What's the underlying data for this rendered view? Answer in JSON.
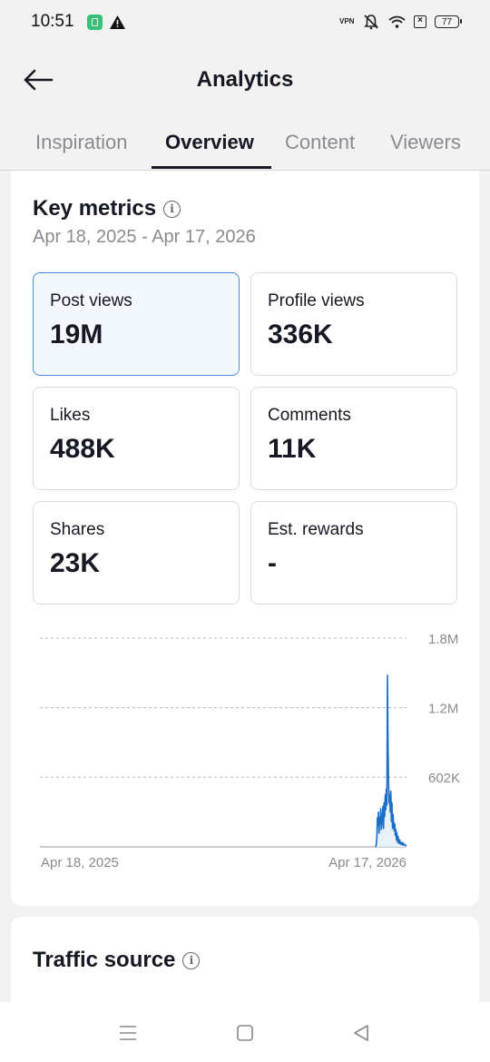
{
  "status_bar": {
    "time": "10:51",
    "vpn_label": "VPN",
    "battery": "77"
  },
  "header": {
    "title": "Analytics"
  },
  "tabs": [
    {
      "label": "Inspiration",
      "active": false
    },
    {
      "label": "Overview",
      "active": true
    },
    {
      "label": "Content",
      "active": false
    },
    {
      "label": "Viewers",
      "active": false
    }
  ],
  "key_metrics": {
    "title": "Key metrics",
    "date_range": "Apr 18, 2025 - Apr 17, 2026",
    "metrics": [
      {
        "label": "Post views",
        "value": "19M",
        "selected": true
      },
      {
        "label": "Profile views",
        "value": "336K",
        "selected": false
      },
      {
        "label": "Likes",
        "value": "488K",
        "selected": false
      },
      {
        "label": "Comments",
        "value": "11K",
        "selected": false
      },
      {
        "label": "Shares",
        "value": "23K",
        "selected": false
      },
      {
        "label": "Est. rewards",
        "value": "-",
        "selected": false
      }
    ]
  },
  "chart_data": {
    "type": "line",
    "series": [
      {
        "values": [
          0,
          0,
          0,
          0,
          0,
          0,
          0,
          0,
          0,
          0,
          0,
          0,
          0,
          0,
          0,
          0,
          0,
          0,
          0,
          0,
          0,
          0,
          0,
          0,
          0,
          0,
          0,
          0,
          0,
          0,
          0,
          0,
          0,
          0,
          0,
          0,
          0,
          0,
          0,
          0,
          0,
          0,
          0,
          0,
          0,
          0,
          0,
          0,
          0,
          0,
          0,
          0,
          0,
          0,
          0,
          0,
          0,
          0,
          0,
          0,
          0,
          0,
          0,
          0,
          0,
          0,
          0,
          0,
          0,
          0,
          0,
          0,
          0,
          0,
          0,
          0,
          0,
          0,
          0,
          0,
          0,
          0,
          0,
          0,
          0,
          0,
          0,
          0,
          0,
          0,
          0,
          0,
          0,
          0,
          0,
          0,
          0,
          0,
          0,
          0,
          0,
          0,
          0,
          0,
          0,
          0,
          0,
          0,
          0,
          0,
          0,
          0,
          0,
          0,
          0,
          0,
          0,
          0,
          0,
          0,
          0,
          0,
          0,
          0,
          0,
          0,
          0,
          0,
          0,
          0,
          0,
          0,
          0,
          0,
          0,
          0,
          0,
          0,
          0,
          0,
          0,
          0,
          0,
          0,
          0,
          0,
          0,
          0,
          0,
          0,
          0,
          0,
          0,
          0,
          0,
          0,
          0,
          0,
          0,
          0,
          0,
          0,
          0,
          0,
          0,
          0,
          0,
          0,
          0,
          0,
          0,
          0,
          0,
          0,
          0,
          0,
          0,
          0,
          0,
          0,
          0,
          0,
          0,
          0,
          0,
          0,
          0,
          0,
          0,
          0,
          0,
          0,
          0,
          0,
          0,
          0,
          0,
          0,
          0,
          0,
          0,
          0,
          0,
          0,
          0,
          0,
          0,
          0,
          0,
          0,
          0,
          0,
          0,
          0,
          0,
          0,
          0,
          0,
          0,
          0,
          0,
          0,
          0,
          0,
          0,
          0,
          0,
          0,
          0,
          0,
          0,
          0,
          0,
          0,
          0,
          0,
          0,
          0,
          0,
          0,
          0,
          0,
          0,
          0,
          0,
          0,
          0,
          0,
          0,
          0,
          0,
          0,
          0,
          0,
          0,
          0,
          0,
          0,
          0,
          0,
          0,
          0,
          0,
          0,
          0,
          0,
          0,
          0,
          0,
          0,
          0,
          0,
          0,
          0,
          0,
          0,
          0,
          0,
          0,
          0,
          0,
          0,
          0,
          0,
          0,
          0,
          0,
          0,
          0,
          0,
          0,
          0,
          0,
          0,
          0,
          0,
          0,
          0,
          0,
          0,
          0,
          0,
          0,
          0,
          0,
          0,
          0,
          0,
          0,
          0,
          0,
          0,
          0,
          0,
          0,
          0,
          0,
          0,
          0,
          0,
          0,
          0,
          0,
          0,
          0,
          0,
          0,
          0,
          0,
          0,
          0,
          0,
          0,
          0,
          0,
          0,
          0,
          0,
          0,
          0,
          0,
          0,
          0,
          0,
          0,
          0,
          0,
          0,
          0,
          0,
          0,
          0,
          0,
          0,
          0,
          0,
          0,
          0,
          0,
          0,
          0,
          0,
          0,
          0,
          0,
          0,
          0,
          0,
          0,
          0,
          0,
          0,
          0,
          0,
          0,
          0,
          0,
          0,
          0,
          0,
          0,
          0,
          0,
          0,
          0,
          0,
          0,
          0,
          0,
          0,
          0,
          0,
          0,
          0,
          0,
          0,
          0,
          0,
          0,
          0,
          0,
          0,
          0,
          0,
          0,
          0,
          0,
          0,
          0,
          0,
          0,
          0,
          0,
          0,
          0,
          0,
          0,
          0,
          0,
          0,
          0,
          0,
          0,
          0,
          0,
          0,
          0,
          0,
          0,
          0,
          0,
          0,
          0,
          0,
          0,
          0,
          0,
          0,
          0,
          0,
          0,
          0,
          0,
          0,
          0,
          0,
          0,
          0,
          0,
          0,
          0,
          0,
          0,
          0,
          0,
          0,
          0,
          0,
          0,
          0,
          0,
          0,
          0,
          0,
          0,
          0,
          0,
          0,
          0,
          0,
          0,
          0,
          0,
          0,
          0,
          0,
          0,
          0,
          0,
          0,
          0,
          0,
          0,
          0,
          0,
          0,
          0,
          0,
          0,
          0,
          0,
          0,
          0,
          0,
          0,
          0,
          0,
          0,
          0,
          0,
          0,
          0,
          0,
          0,
          0,
          0,
          0,
          0,
          0,
          0,
          0,
          0,
          0,
          0,
          0,
          0,
          0,
          0,
          0,
          0,
          0,
          0,
          0,
          0,
          0,
          0,
          0,
          0,
          0,
          0,
          0,
          0,
          0,
          0,
          0,
          0,
          0,
          0,
          0,
          0,
          0,
          0,
          0,
          0,
          0,
          0,
          0,
          0,
          0,
          0,
          0,
          0,
          0,
          0,
          0,
          0,
          0,
          0,
          0,
          0,
          0,
          0,
          0,
          0,
          0,
          0,
          0,
          0,
          0,
          0,
          0,
          0,
          0,
          0,
          0,
          0,
          0,
          0,
          0,
          0,
          0,
          0,
          0,
          0,
          0,
          0,
          0,
          0,
          0,
          0,
          0,
          0,
          0,
          0,
          0,
          0,
          0,
          0,
          0,
          0,
          20000,
          70000,
          250000,
          180000,
          300000,
          120000,
          250000,
          200000,
          330000,
          150000,
          200000,
          280000,
          350000,
          160000,
          380000,
          260000,
          450000,
          320000,
          500000,
          360000,
          1480000,
          900000,
          550000,
          380000,
          450000,
          300000,
          480000,
          220000,
          380000,
          160000,
          280000,
          200000,
          140000,
          200000,
          100000,
          150000,
          60000,
          120000,
          40000,
          90000,
          40000,
          30000,
          60000,
          30000,
          20000,
          30000,
          40000,
          20000,
          15000,
          30000,
          20000,
          15000,
          10000,
          15000,
          10000
        ]
      }
    ],
    "x_tick_labels": [
      "Apr 18, 2025",
      "Apr 17, 2026"
    ],
    "y_tick_labels": [
      "1.8M",
      "1.2M",
      "602K"
    ],
    "y_ticks": [
      1800000,
      1200000,
      602000
    ],
    "ylim": [
      0,
      1800000
    ],
    "grid": true,
    "grid_style": "dashed",
    "colors": {
      "line": "#1b6fc6",
      "fill": "#e4eef9",
      "grid": "#b8b8b8",
      "baseline": "#9a9a9a",
      "tick_text": "#8a8b91"
    }
  },
  "traffic_source": {
    "title": "Traffic source"
  },
  "nav_bar": {
    "icons": [
      "menu-icon",
      "home-square-icon",
      "back-triangle-icon"
    ]
  }
}
